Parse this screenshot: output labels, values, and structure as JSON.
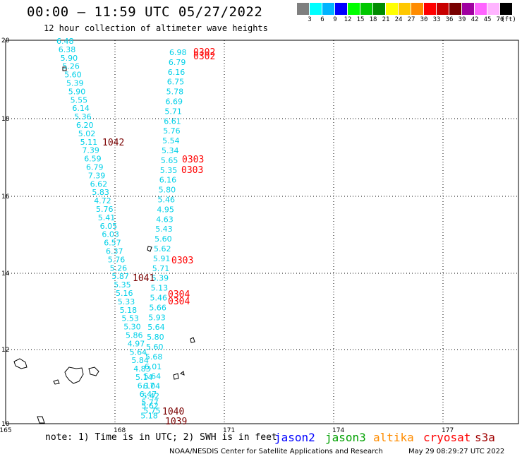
{
  "title": "00:00 – 11:59 UTC 05/27/2022",
  "subtitle": "12 hour collection of altimeter wave heights",
  "colorbar": {
    "labels": [
      "3",
      "6",
      "9",
      "12",
      "15",
      "18",
      "21",
      "24",
      "27",
      "30",
      "33",
      "36",
      "39",
      "42",
      "45",
      "70"
    ],
    "unit": "(ft)",
    "colors": [
      "#7f7f7f",
      "#00ffff",
      "#00b4ff",
      "#0000ff",
      "#00ff00",
      "#00c800",
      "#008c00",
      "#ffff00",
      "#ffc800",
      "#ff8c00",
      "#ff0000",
      "#c80000",
      "#780000",
      "#a000a0",
      "#ff64ff",
      "#ffb4ff",
      "#000000"
    ]
  },
  "axes": {
    "lon_labels": [
      "165",
      "168",
      "171",
      "174",
      "177"
    ],
    "lat_labels": [
      "20",
      "18",
      "16",
      "14",
      "12",
      "10"
    ]
  },
  "swh_labels": {
    "track1": [
      "6.48",
      "6.38",
      "5.90",
      "5.26",
      "5.60",
      "5.39",
      "5.90",
      "5.55",
      "6.14",
      "5.36",
      "6.20",
      "5.02",
      "5.11",
      "7.39",
      "6.59",
      "6.79",
      "7.39",
      "6.62",
      "5.83",
      "4.72",
      "5.76",
      "5.41",
      "6.05",
      "6.03",
      "6.57",
      "6.37",
      "5.76",
      "5.26",
      "5.87",
      "5.35",
      "5.16",
      "5.33",
      "5.18",
      "5.53",
      "5.30",
      "5.86",
      "4.97",
      "5.64",
      "5.84",
      "4.83",
      "5.14",
      "6.17",
      "6.47",
      "5.77",
      "5.75"
    ],
    "track2": [
      "6.98",
      "6.79",
      "6.16",
      "6.75",
      "5.78",
      "6.69",
      "5.71",
      "6.61",
      "5.76",
      "5.54",
      "5.34",
      "5.65",
      "5.35",
      "6.16",
      "5.80",
      "5.46",
      "4.95",
      "4.63",
      "5.43",
      "5.60",
      "5.62",
      "5.91",
      "5.71",
      "5.39",
      "5.13",
      "5.46",
      "5.66",
      "5.93",
      "5.64",
      "5.80",
      "5.60",
      "5.68",
      "6.01",
      "5.64",
      "6.04",
      "5.42",
      "5.62",
      "5.18"
    ]
  },
  "pass_labels": {
    "red": [
      "0302",
      "0302",
      "0303",
      "0303",
      "0303",
      "0304",
      "0304"
    ],
    "darkred": [
      "1042",
      "1041",
      "1040",
      "1039"
    ]
  },
  "footer": {
    "note": "note: 1) Time is in UTC; 2) SWH is in feet",
    "credit": "NOAA/NESDIS Center for Satellite Applications and Research",
    "timestamp": "May 29 08:29:27 UTC 2022"
  },
  "satellites": [
    {
      "name": "jason2",
      "color": "#0000ff"
    },
    {
      "name": "jason3",
      "color": "#00a000"
    },
    {
      "name": "altika",
      "color": "#ff8c00"
    },
    {
      "name": "cryosat",
      "color": "#ff0000"
    },
    {
      "name": "s3a",
      "color": "#a00000"
    }
  ],
  "colors": {
    "swh": "#00d0e8",
    "pass_red": "#ff0000",
    "pass_darkred": "#7a0000"
  }
}
